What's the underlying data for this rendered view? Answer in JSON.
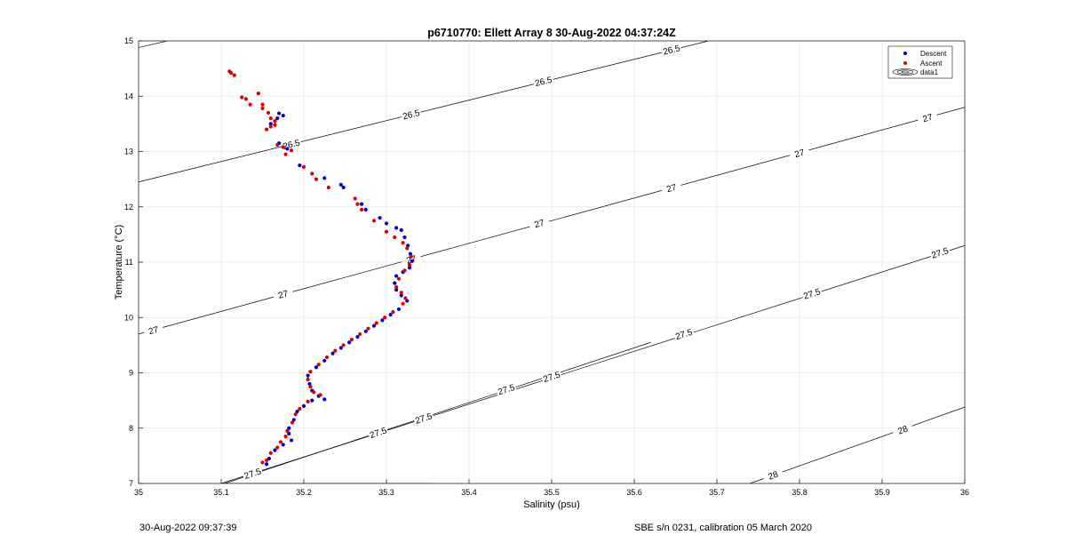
{
  "chart_data": {
    "type": "scatter",
    "title": "p6710770: Ellett Array 8 30-Aug-2022 04:37:24Z",
    "xlabel": "Salinity (psu)",
    "ylabel": "Temperature (°C)",
    "xlim": [
      35,
      36
    ],
    "ylim": [
      7,
      15
    ],
    "xticks": [
      "35",
      "35.1",
      "35.2",
      "35.3",
      "35.4",
      "35.5",
      "35.6",
      "35.7",
      "35.8",
      "35.9",
      "36"
    ],
    "yticks": [
      "7",
      "8",
      "9",
      "10",
      "11",
      "12",
      "13",
      "14",
      "15"
    ],
    "grid": true,
    "legend_position": "top-right",
    "legend": [
      {
        "label": "Descent",
        "color": "#0000cc",
        "marker": "dot"
      },
      {
        "label": "Ascent",
        "color": "#dd0000",
        "marker": "dot"
      },
      {
        "label": "data1",
        "color": "#000000",
        "marker": "contour"
      }
    ],
    "series": [
      {
        "name": "Descent",
        "color": "#0000cc",
        "points": [
          [
            35.17,
            13.69
          ],
          [
            35.165,
            13.55
          ],
          [
            35.16,
            13.5
          ],
          [
            35.168,
            13.6
          ],
          [
            35.175,
            13.65
          ],
          [
            35.17,
            13.15
          ],
          [
            35.18,
            13.05
          ],
          [
            35.195,
            12.75
          ],
          [
            35.225,
            12.52
          ],
          [
            35.245,
            12.4
          ],
          [
            35.248,
            12.35
          ],
          [
            35.27,
            12.05
          ],
          [
            35.275,
            11.95
          ],
          [
            35.292,
            11.8
          ],
          [
            35.3,
            11.7
          ],
          [
            35.312,
            11.62
          ],
          [
            35.318,
            11.58
          ],
          [
            35.322,
            11.45
          ],
          [
            35.326,
            11.3
          ],
          [
            35.329,
            11.15
          ],
          [
            35.331,
            11.02
          ],
          [
            35.328,
            10.9
          ],
          [
            35.32,
            10.82
          ],
          [
            35.312,
            10.75
          ],
          [
            35.31,
            10.62
          ],
          [
            35.312,
            10.5
          ],
          [
            35.318,
            10.4
          ],
          [
            35.325,
            10.3
          ],
          [
            35.315,
            10.15
          ],
          [
            35.305,
            10.05
          ],
          [
            35.295,
            9.95
          ],
          [
            35.285,
            9.85
          ],
          [
            35.275,
            9.75
          ],
          [
            35.265,
            9.65
          ],
          [
            35.255,
            9.55
          ],
          [
            35.245,
            9.45
          ],
          [
            35.235,
            9.35
          ],
          [
            35.225,
            9.22
          ],
          [
            35.215,
            9.1
          ],
          [
            35.205,
            8.95
          ],
          [
            35.207,
            8.8
          ],
          [
            35.21,
            8.68
          ],
          [
            35.218,
            8.58
          ],
          [
            35.225,
            8.52
          ],
          [
            35.21,
            8.5
          ],
          [
            35.2,
            8.4
          ],
          [
            35.192,
            8.3
          ],
          [
            35.188,
            8.15
          ],
          [
            35.182,
            8.0
          ],
          [
            35.182,
            7.9
          ],
          [
            35.185,
            7.78
          ],
          [
            35.175,
            7.7
          ],
          [
            35.165,
            7.6
          ],
          [
            35.158,
            7.45
          ],
          [
            35.155,
            7.35
          ]
        ]
      },
      {
        "name": "Ascent",
        "color": "#dd0000",
        "points": [
          [
            35.112,
            14.42
          ],
          [
            35.116,
            14.38
          ],
          [
            35.11,
            14.45
          ],
          [
            35.125,
            13.98
          ],
          [
            35.13,
            13.95
          ],
          [
            35.135,
            13.85
          ],
          [
            35.145,
            14.05
          ],
          [
            35.15,
            13.85
          ],
          [
            35.15,
            13.78
          ],
          [
            35.157,
            13.7
          ],
          [
            35.16,
            13.6
          ],
          [
            35.165,
            13.55
          ],
          [
            35.155,
            13.4
          ],
          [
            35.16,
            13.45
          ],
          [
            35.165,
            13.48
          ],
          [
            35.168,
            13.12
          ],
          [
            35.175,
            13.08
          ],
          [
            35.185,
            13.02
          ],
          [
            35.178,
            12.95
          ],
          [
            35.2,
            12.72
          ],
          [
            35.21,
            12.6
          ],
          [
            35.215,
            12.5
          ],
          [
            35.23,
            12.35
          ],
          [
            35.262,
            12.15
          ],
          [
            35.265,
            12.05
          ],
          [
            35.27,
            11.95
          ],
          [
            35.285,
            11.75
          ],
          [
            35.3,
            11.55
          ],
          [
            35.31,
            11.45
          ],
          [
            35.32,
            11.35
          ],
          [
            35.325,
            11.25
          ],
          [
            35.33,
            11.1
          ],
          [
            35.328,
            10.95
          ],
          [
            35.322,
            10.85
          ],
          [
            35.315,
            10.7
          ],
          [
            35.312,
            10.55
          ],
          [
            35.318,
            10.45
          ],
          [
            35.323,
            10.35
          ],
          [
            35.32,
            10.25
          ],
          [
            35.308,
            10.1
          ],
          [
            35.298,
            10.0
          ],
          [
            35.288,
            9.9
          ],
          [
            35.278,
            9.8
          ],
          [
            35.268,
            9.7
          ],
          [
            35.258,
            9.6
          ],
          [
            35.248,
            9.5
          ],
          [
            35.238,
            9.4
          ],
          [
            35.228,
            9.28
          ],
          [
            35.218,
            9.15
          ],
          [
            35.208,
            9.02
          ],
          [
            35.205,
            8.88
          ],
          [
            35.208,
            8.75
          ],
          [
            35.212,
            8.65
          ],
          [
            35.22,
            8.6
          ],
          [
            35.205,
            8.48
          ],
          [
            35.195,
            8.35
          ],
          [
            35.19,
            8.25
          ],
          [
            35.186,
            8.1
          ],
          [
            35.18,
            7.95
          ],
          [
            35.178,
            7.85
          ],
          [
            35.172,
            7.75
          ],
          [
            35.168,
            7.65
          ],
          [
            35.16,
            7.55
          ],
          [
            35.155,
            7.42
          ],
          [
            35.15,
            7.38
          ]
        ]
      }
    ],
    "contours": [
      {
        "label": "26.5",
        "line": [
          [
            35.0,
            14.88
          ],
          [
            35.035,
            15.0
          ]
        ],
        "labels_at": []
      },
      {
        "label": "26.5",
        "line": [
          [
            35.0,
            12.45
          ],
          [
            35.69,
            15.0
          ]
        ],
        "labels_at": [
          [
            35.185,
            13.13
          ],
          [
            35.33,
            13.67
          ],
          [
            35.49,
            14.27
          ],
          [
            35.645,
            14.84
          ]
        ]
      },
      {
        "label": "27",
        "line": [
          [
            35.0,
            9.7
          ],
          [
            36.0,
            13.8
          ]
        ],
        "labels_at": [
          [
            35.018,
            9.77
          ],
          [
            35.175,
            10.42
          ],
          [
            35.33,
            11.05
          ],
          [
            35.485,
            11.7
          ],
          [
            35.645,
            12.34
          ],
          [
            35.8,
            12.97
          ],
          [
            35.955,
            13.61
          ]
        ]
      },
      {
        "label": "27.5",
        "line": [
          [
            35.1,
            7.0
          ],
          [
            36.0,
            11.3
          ]
        ],
        "labels_at": [
          [
            35.345,
            8.18
          ],
          [
            35.5,
            8.93
          ],
          [
            35.66,
            9.7
          ],
          [
            35.815,
            10.43
          ],
          [
            35.97,
            11.17
          ]
        ]
      },
      {
        "label": "27.5",
        "line": [
          [
            35.1,
            7.0
          ],
          [
            35.355,
            7.0
          ]
        ],
        "labels_at": []
      },
      {
        "label": "27.5",
        "line": [
          [
            35.104,
            7.0
          ],
          [
            35.62,
            9.55
          ]
        ],
        "labels_at": [
          [
            35.138,
            7.18
          ],
          [
            35.29,
            7.92
          ],
          [
            35.445,
            8.7
          ]
        ]
      },
      {
        "label": "28",
        "line": [
          [
            35.74,
            7.0
          ],
          [
            36.0,
            8.38
          ]
        ],
        "labels_at": [
          [
            35.768,
            7.15
          ],
          [
            35.925,
            7.97
          ]
        ]
      }
    ]
  },
  "footer": {
    "timestamp": "30-Aug-2022 09:37:39",
    "calibration": "SBE s/n 0231, calibration 05 March 2020"
  }
}
